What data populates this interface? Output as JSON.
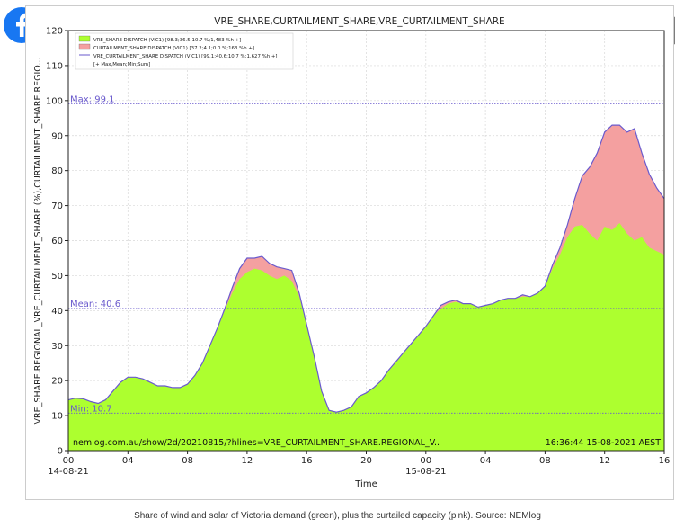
{
  "icons": {
    "facebook": "facebook-icon",
    "zoom": "zoom-in-icon"
  },
  "caption": "Share of wind and solar of Victoria demand (green), plus the curtailed capacity (pink). Source: NEMlog",
  "chart_data": {
    "type": "area",
    "title": "VRE_SHARE,CURTAILMENT_SHARE,VRE_CURTAILMENT_SHARE",
    "xlabel": "Time",
    "ylabel": "VRE_SHARE.REGIONAL_VRE_CURTAILMENT_SHARE (%),CURTAILMENT_SHARE.REGIO...",
    "ylim": [
      0,
      120
    ],
    "xlim": [
      0,
      40
    ],
    "y_ticks": [
      0,
      10,
      20,
      30,
      40,
      50,
      60,
      70,
      80,
      90,
      100,
      110,
      120
    ],
    "x_ticks": [
      {
        "x": 0,
        "label": "00",
        "sub": "14-08-21"
      },
      {
        "x": 4,
        "label": "04",
        "sub": ""
      },
      {
        "x": 8,
        "label": "08",
        "sub": ""
      },
      {
        "x": 12,
        "label": "12",
        "sub": ""
      },
      {
        "x": 16,
        "label": "16",
        "sub": ""
      },
      {
        "x": 20,
        "label": "20",
        "sub": ""
      },
      {
        "x": 24,
        "label": "00",
        "sub": "15-08-21"
      },
      {
        "x": 28,
        "label": "04",
        "sub": ""
      },
      {
        "x": 32,
        "label": "08",
        "sub": ""
      },
      {
        "x": 36,
        "label": "12",
        "sub": ""
      },
      {
        "x": 40,
        "label": "16",
        "sub": ""
      }
    ],
    "grid": true,
    "legend_position": "top-left",
    "legend": [
      {
        "label": "VRE_SHARE DISPATCH (VIC1) [98.3;36.5;10.7 %;1,483 %h +]",
        "color": "#adff2f",
        "kind": "area"
      },
      {
        "label": "CURTAILMENT_SHARE DISPATCH (VIC1) [37.2;4.1;0.0 %;163 %h +]",
        "color": "#f4a0a0",
        "kind": "area"
      },
      {
        "label": "VRE_CURTAILMENT_SHARE DISPATCH (VIC1) [99.1;40.6;10.7 %;1,627 %h +]",
        "color": "#6a5acd",
        "kind": "line"
      }
    ],
    "legend_note": "[+ Max,Mean;Min;Sum]",
    "hlines": [
      {
        "y": 99.1,
        "label": "Max: 99.1"
      },
      {
        "y": 40.6,
        "label": "Mean: 40.6"
      },
      {
        "y": 10.7,
        "label": "Min: 10.7"
      }
    ],
    "footer_left": "nemlog.com.au/show/2d/20210815/?hlines=VRE_CURTAILMENT_SHARE.REGIONAL_V..",
    "footer_right": "16:36:44 15-08-2021 AEST",
    "colors": {
      "vre": "#adff2f",
      "curtailment": "#f4a0a0",
      "total_line": "#6a5acd",
      "hline": "#6a5acd"
    },
    "series": [
      {
        "name": "VRE_SHARE DISPATCH (VIC1)",
        "x": [
          0,
          0.5,
          1,
          1.5,
          2,
          2.5,
          3,
          3.5,
          4,
          4.5,
          5,
          5.5,
          6,
          6.5,
          7,
          7.5,
          8,
          8.5,
          9,
          9.5,
          10,
          10.5,
          11,
          11.5,
          12,
          12.5,
          13,
          13.5,
          14,
          14.5,
          15,
          15.5,
          16,
          16.5,
          17,
          17.5,
          18,
          18.5,
          19,
          19.5,
          20,
          20.5,
          21,
          21.5,
          22,
          22.5,
          23,
          23.5,
          24,
          24.5,
          25,
          25.5,
          26,
          26.5,
          27,
          27.5,
          28,
          28.5,
          29,
          29.5,
          30,
          30.5,
          31,
          31.5,
          32,
          32.5,
          33,
          33.5,
          34,
          34.5,
          35,
          35.5,
          36,
          36.5,
          37,
          37.5,
          38,
          38.5,
          39,
          39.5,
          40
        ],
        "values": [
          14.5,
          15,
          14.8,
          14,
          13.5,
          14.5,
          17,
          19.5,
          21,
          21,
          20.5,
          19.5,
          18.5,
          18.5,
          18,
          18,
          19,
          21.5,
          25,
          30,
          35,
          40,
          45,
          49,
          51,
          52,
          51.5,
          50,
          49,
          50,
          48.5,
          44,
          36,
          27,
          17,
          11.5,
          11,
          11.5,
          12.5,
          15.5,
          16.5,
          18,
          20,
          23,
          25.5,
          28,
          30.5,
          33,
          35.5,
          38.5,
          40.5,
          42,
          42.5,
          42,
          42,
          41,
          41.5,
          42,
          43,
          43.5,
          43.5,
          44,
          44,
          45,
          47,
          52,
          56,
          61,
          64,
          64.5,
          62,
          60,
          64,
          63,
          65,
          62,
          60,
          61,
          58,
          57,
          56
        ]
      },
      {
        "name": "CURTAILMENT_SHARE DISPATCH (VIC1)",
        "x": [
          0,
          0.5,
          1,
          1.5,
          2,
          2.5,
          3,
          3.5,
          4,
          4.5,
          5,
          5.5,
          6,
          6.5,
          7,
          7.5,
          8,
          8.5,
          9,
          9.5,
          10,
          10.5,
          11,
          11.5,
          12,
          12.5,
          13,
          13.5,
          14,
          14.5,
          15,
          15.5,
          16,
          16.5,
          17,
          17.5,
          18,
          18.5,
          19,
          19.5,
          20,
          20.5,
          21,
          21.5,
          22,
          22.5,
          23,
          23.5,
          24,
          24.5,
          25,
          25.5,
          26,
          26.5,
          27,
          27.5,
          28,
          28.5,
          29,
          29.5,
          30,
          30.5,
          31,
          31.5,
          32,
          32.5,
          33,
          33.5,
          34,
          34.5,
          35,
          35.5,
          36,
          36.5,
          37,
          37.5,
          38,
          38.5,
          39,
          39.5,
          40
        ],
        "values": [
          0,
          0,
          0,
          0,
          0,
          0,
          0,
          0,
          0,
          0,
          0,
          0,
          0,
          0,
          0,
          0,
          0,
          0,
          0,
          0,
          0,
          0.5,
          1.5,
          3,
          4,
          3,
          4,
          3.5,
          3.5,
          2,
          3,
          1,
          0,
          0,
          0,
          0,
          0,
          0,
          0,
          0,
          0,
          0,
          0,
          0,
          0,
          0,
          0,
          0,
          0,
          0,
          1,
          0.5,
          0.5,
          0,
          0,
          0,
          0,
          0,
          0,
          0,
          0,
          0.5,
          0,
          0,
          0,
          1,
          2,
          3.5,
          8,
          14,
          19,
          25,
          27,
          30,
          28,
          29,
          32,
          24,
          21,
          18,
          16
        ]
      },
      {
        "name": "VRE_CURTAILMENT_SHARE DISPATCH (VIC1)",
        "x": [
          0,
          0.5,
          1,
          1.5,
          2,
          2.5,
          3,
          3.5,
          4,
          4.5,
          5,
          5.5,
          6,
          6.5,
          7,
          7.5,
          8,
          8.5,
          9,
          9.5,
          10,
          10.5,
          11,
          11.5,
          12,
          12.5,
          13,
          13.5,
          14,
          14.5,
          15,
          15.5,
          16,
          16.5,
          17,
          17.5,
          18,
          18.5,
          19,
          19.5,
          20,
          20.5,
          21,
          21.5,
          22,
          22.5,
          23,
          23.5,
          24,
          24.5,
          25,
          25.5,
          26,
          26.5,
          27,
          27.5,
          28,
          28.5,
          29,
          29.5,
          30,
          30.5,
          31,
          31.5,
          32,
          32.5,
          33,
          33.5,
          34,
          34.5,
          35,
          35.5,
          36,
          36.5,
          37,
          37.5,
          38,
          38.5,
          39,
          39.5,
          40
        ],
        "values": [
          14.5,
          15,
          14.8,
          14,
          13.5,
          14.5,
          17,
          19.5,
          21,
          21,
          20.5,
          19.5,
          18.5,
          18.5,
          18,
          18,
          19,
          21.5,
          25,
          30,
          35,
          40.5,
          46.5,
          52,
          55,
          55,
          55.5,
          53.5,
          52.5,
          52,
          51.5,
          45,
          36,
          27,
          17,
          11.5,
          11,
          11.5,
          12.5,
          15.5,
          16.5,
          18,
          20,
          23,
          25.5,
          28,
          30.5,
          33,
          35.5,
          38.5,
          41.5,
          42.5,
          43,
          42,
          42,
          41,
          41.5,
          42,
          43,
          43.5,
          43.5,
          44.5,
          44,
          45,
          47,
          53,
          58,
          64.5,
          72,
          78.5,
          81,
          85,
          91,
          93,
          93,
          91,
          92,
          85,
          79,
          75,
          72
        ]
      }
    ]
  }
}
